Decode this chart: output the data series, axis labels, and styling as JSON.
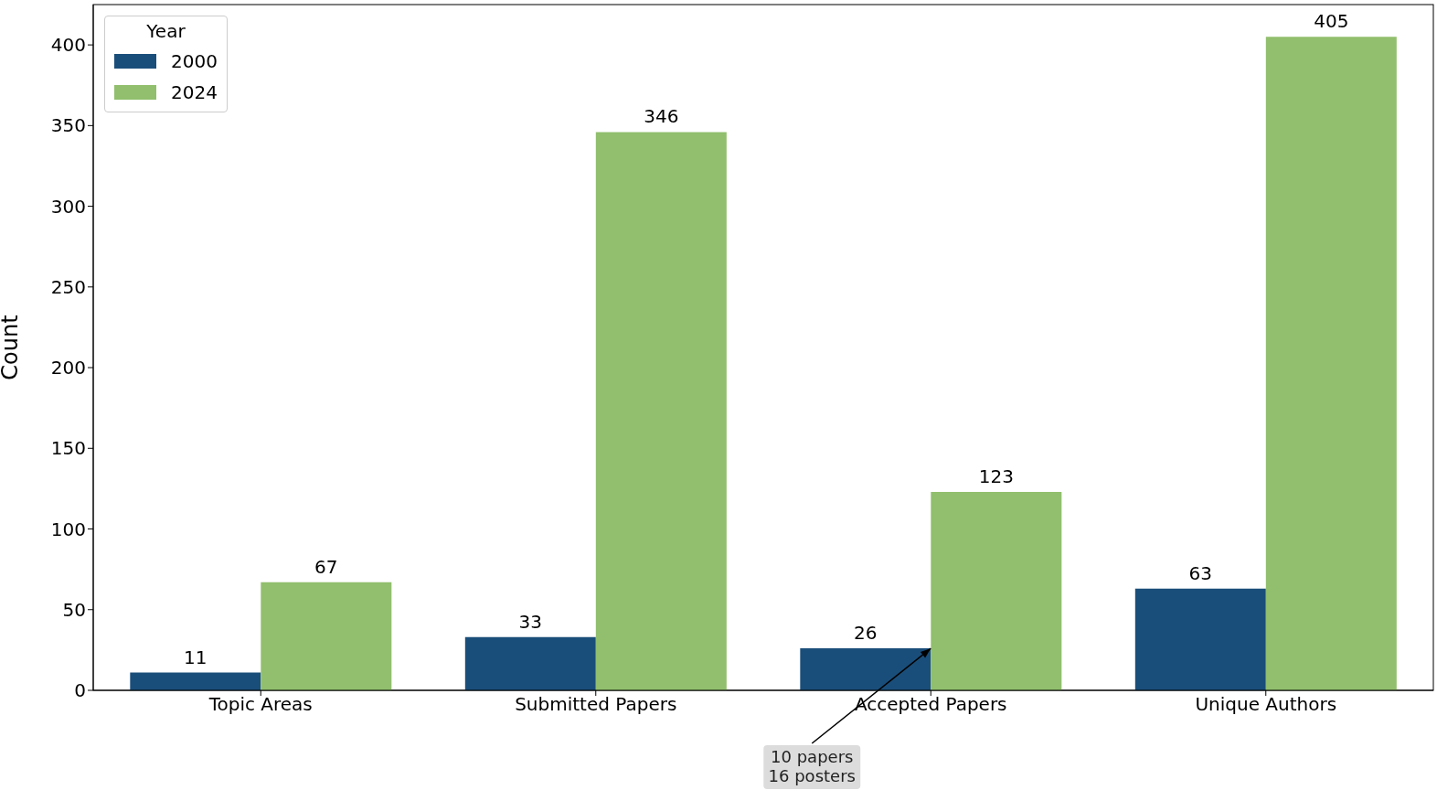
{
  "chart_data": {
    "type": "bar",
    "ylabel": "Count",
    "legend_title": "Year",
    "legend": "top left",
    "data_labels": true,
    "grid": false,
    "categories": [
      "Topic Areas",
      "Submitted Papers",
      "Accepted Papers",
      "Unique Authors"
    ],
    "series": [
      {
        "name": "2000",
        "color": "#1a4e7a",
        "values": [
          11,
          33,
          26,
          63
        ]
      },
      {
        "name": "2024",
        "color": "#91bf6d",
        "values": [
          67,
          346,
          123,
          405
        ]
      }
    ],
    "ylim": [
      0,
      425
    ],
    "yticks": [
      0,
      50,
      100,
      150,
      200,
      250,
      300,
      350,
      400
    ],
    "annotations": [
      {
        "text": "10 papers\n16 posters",
        "x": "Accepted Papers",
        "y": 26
      }
    ]
  }
}
